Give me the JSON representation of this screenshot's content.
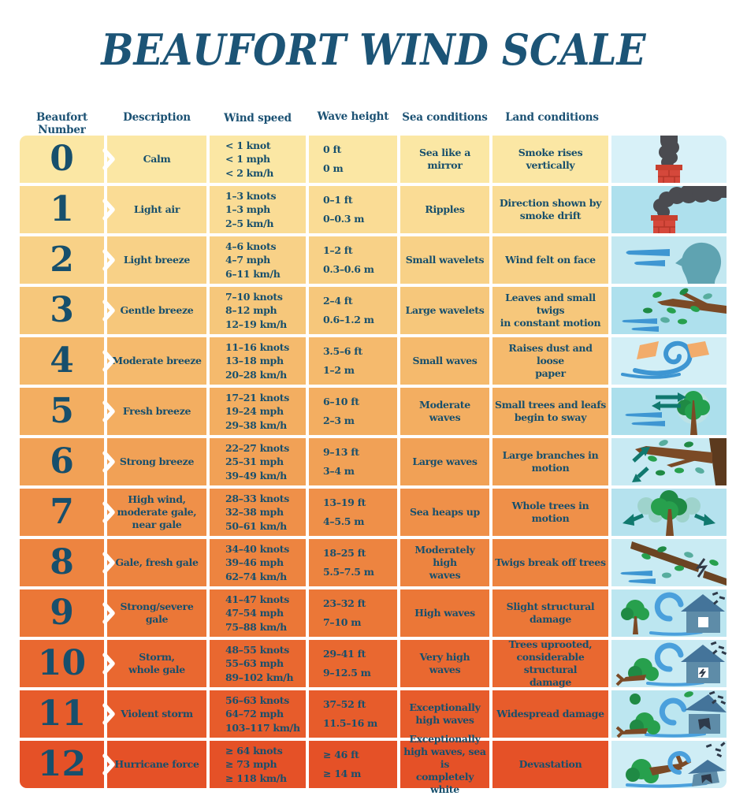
{
  "title": "BEAUFORT WIND SCALE",
  "colors": {
    "title_text": "#1C5476",
    "cell_text": "#174F6C",
    "header_text": "#1B5173",
    "separator": "#FFFFFF"
  },
  "columns": [
    "Beaufort Number",
    "Description",
    "Wind speed",
    "Wave height",
    "Sea conditions",
    "Land conditions"
  ],
  "rows": [
    {
      "number": "0",
      "description": "Calm",
      "wind_speed": [
        "< 1 knot",
        "< 1 mph",
        "< 2 km/h"
      ],
      "wave_height": [
        "0 ft",
        "0 m"
      ],
      "sea_conditions": "Sea like a mirror",
      "land_conditions": "Smoke rises vertically",
      "illustration": "smoke-rises-vertically",
      "row_color": "#FBE7A4",
      "illustration_bg": "#D8F1F8"
    },
    {
      "number": "1",
      "description": "Light air",
      "wind_speed": [
        "1–3 knots",
        "1–3 mph",
        "2–5 km/h"
      ],
      "wave_height": [
        "0–1 ft",
        "0–0.3 m"
      ],
      "sea_conditions": "Ripples",
      "land_conditions": "Direction shown by\nsmoke drift",
      "illustration": "smoke-drift",
      "row_color": "#FADC95",
      "illustration_bg": "#AEE0ED"
    },
    {
      "number": "2",
      "description": "Light breeze",
      "wind_speed": [
        "4–6 knots",
        "4–7 mph",
        "6–11 km/h"
      ],
      "wave_height": [
        "1–2 ft",
        "0.3–0.6 m"
      ],
      "sea_conditions": "Small wavelets",
      "land_conditions": "Wind felt on face",
      "illustration": "wind-on-face",
      "row_color": "#F8D187",
      "illustration_bg": "#C3E8F1"
    },
    {
      "number": "3",
      "description": "Gentle breeze",
      "wind_speed": [
        "7–10 knots",
        "8–12 mph",
        "12–19 km/h"
      ],
      "wave_height": [
        "2–4 ft",
        "0.6–1.2 m"
      ],
      "sea_conditions": "Large wavelets",
      "land_conditions": "Leaves and small twigs\nin constant motion",
      "illustration": "twigs-in-motion",
      "row_color": "#F6C77B",
      "illustration_bg": "#AEE0ED"
    },
    {
      "number": "4",
      "description": "Moderate breeze",
      "wind_speed": [
        "11–16 knots",
        "13–18 mph",
        "20–28 km/h"
      ],
      "wave_height": [
        "3.5–6 ft",
        "1–2 m"
      ],
      "sea_conditions": "Small waves",
      "land_conditions": "Raises dust and loose\npaper",
      "illustration": "dust-and-paper",
      "row_color": "#F5BA6D",
      "illustration_bg": "#D3EFF6"
    },
    {
      "number": "5",
      "description": "Fresh breeze",
      "wind_speed": [
        "17–21 knots",
        "19–24 mph",
        "29–38 km/h"
      ],
      "wave_height": [
        "6–10 ft",
        "2–3 m"
      ],
      "sea_conditions": "Moderate waves",
      "land_conditions": "Small trees and leafs\nbegin to sway",
      "illustration": "small-tree-sway",
      "row_color": "#F3AE61",
      "illustration_bg": "#ACDFEC"
    },
    {
      "number": "6",
      "description": "Strong breeze",
      "wind_speed": [
        "22–27 knots",
        "25–31 mph",
        "39–49 km/h"
      ],
      "wave_height": [
        "9–13 ft",
        "3–4 m"
      ],
      "sea_conditions": "Large waves",
      "land_conditions": "Large branches in\nmotion",
      "illustration": "large-branch-motion",
      "row_color": "#F1A156",
      "illustration_bg": "#C8EAF3"
    },
    {
      "number": "7",
      "description": "High wind,\nmoderate gale,\nnear gale",
      "wind_speed": [
        "28–33 knots",
        "32–38 mph",
        "50–61 km/h"
      ],
      "wave_height": [
        "13–19 ft",
        "4–5.5 m"
      ],
      "sea_conditions": "Sea heaps up",
      "land_conditions": "Whole trees in motion",
      "illustration": "whole-tree-motion",
      "row_color": "#EF9049",
      "illustration_bg": "#B5E2EE"
    },
    {
      "number": "8",
      "description": "Gale, fresh gale",
      "wind_speed": [
        "34–40 knots",
        "39–46 mph",
        "62–74 km/h"
      ],
      "wave_height": [
        "18–25 ft",
        "5.5–7.5 m"
      ],
      "sea_conditions": "Moderately high\nwaves",
      "land_conditions": "Twigs break off trees",
      "illustration": "twigs-break-off",
      "row_color": "#ED8440",
      "illustration_bg": "#C9EBF3"
    },
    {
      "number": "9",
      "description": "Strong/severe\ngale",
      "wind_speed": [
        "41–47 knots",
        "47–54 mph",
        "75–88 km/h"
      ],
      "wave_height": [
        "23–32 ft",
        "7–10 m"
      ],
      "sea_conditions": "High waves",
      "land_conditions": "Slight structural\ndamage",
      "illustration": "slight-damage-house",
      "row_color": "#EB7737",
      "illustration_bg": "#BCE6F0"
    },
    {
      "number": "10",
      "description": "Storm,\nwhole gale",
      "wind_speed": [
        "48–55 knots",
        "55–63 mph",
        "89–102 km/h"
      ],
      "wave_height": [
        "29–41 ft",
        "9–12.5 m"
      ],
      "sea_conditions": "Very high waves",
      "land_conditions": "Trees uprooted,\nconsiderable structural\ndamage",
      "illustration": "tree-uprooted-house",
      "row_color": "#E96830",
      "illustration_bg": "#C9EBF3"
    },
    {
      "number": "11",
      "description": "Violent storm",
      "wind_speed": [
        "56–63 knots",
        "64–72 mph",
        "103–117 km/h"
      ],
      "wave_height": [
        "37–52 ft",
        "11.5–16 m"
      ],
      "sea_conditions": "Exceptionally\nhigh waves",
      "land_conditions": "Widespread damage",
      "illustration": "widespread-damage-house",
      "row_color": "#E75C2B",
      "illustration_bg": "#BCE6F0"
    },
    {
      "number": "12",
      "description": "Hurricane force",
      "wind_speed": [
        "≥ 64 knots",
        "≥ 73 mph",
        "≥ 118 km/h"
      ],
      "wave_height": [
        "≥ 46 ft",
        "≥ 14 m"
      ],
      "sea_conditions": "Exceptionally\nhigh waves, sea is\ncompletely white",
      "land_conditions": "Devastation",
      "illustration": "devastation-house",
      "row_color": "#E55127",
      "illustration_bg": "#CFEDF5"
    }
  ]
}
